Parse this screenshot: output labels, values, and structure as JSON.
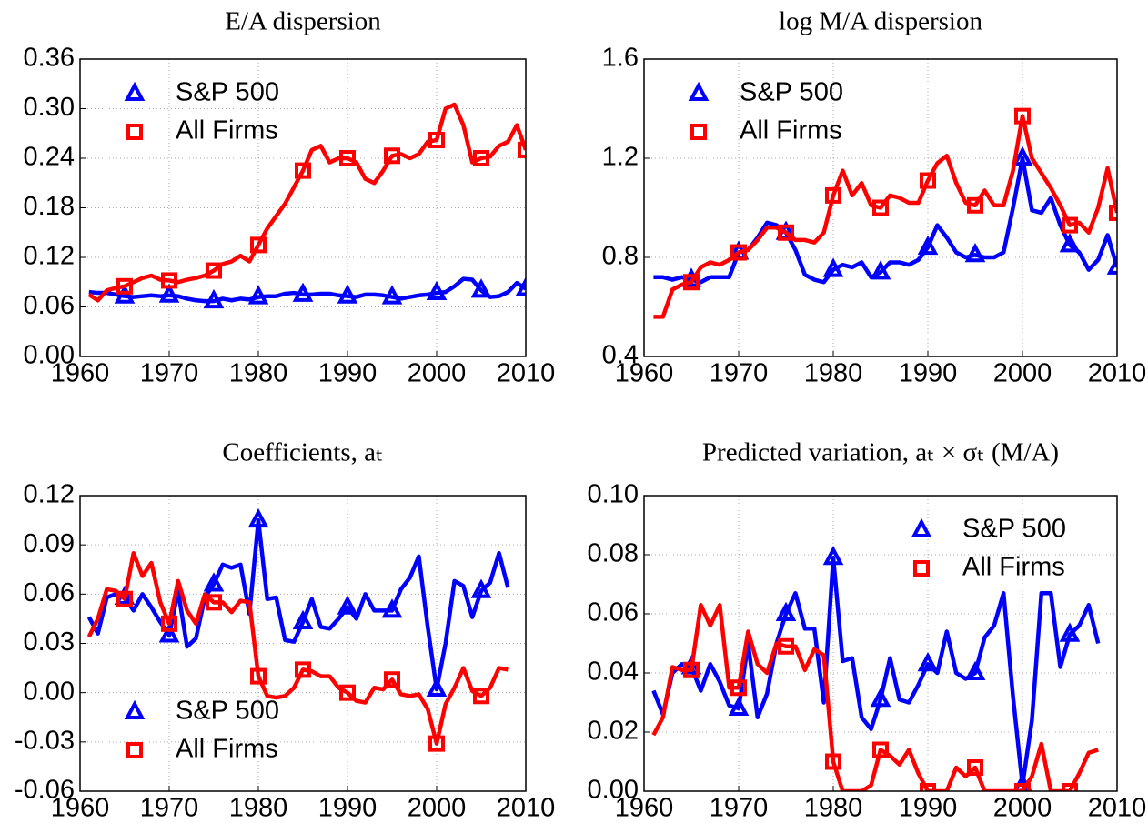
{
  "chart_data": [
    {
      "type": "line",
      "title": "E/A dispersion",
      "legend": "upper left",
      "x": [
        1961,
        1962,
        1963,
        1964,
        1965,
        1966,
        1967,
        1968,
        1969,
        1970,
        1971,
        1972,
        1973,
        1974,
        1975,
        1976,
        1977,
        1978,
        1979,
        1980,
        1981,
        1982,
        1983,
        1984,
        1985,
        1986,
        1987,
        1988,
        1989,
        1990,
        1991,
        1992,
        1993,
        1994,
        1995,
        1996,
        1997,
        1998,
        1999,
        2000,
        2001,
        2002,
        2003,
        2004,
        2005,
        2006,
        2007,
        2008,
        2009,
        2010
      ],
      "xlim": [
        1960,
        2010
      ],
      "xticks": [
        1960,
        1970,
        1980,
        1990,
        2000,
        2010
      ],
      "ylim": [
        0,
        0.36
      ],
      "yticks": [
        {
          "value": 0,
          "label": "0.00"
        },
        0.06,
        0.12,
        0.18,
        0.24,
        {
          "value": 0.3,
          "label": "0.30"
        },
        0.36
      ],
      "grid": true,
      "series": [
        {
          "name": "S&P 500",
          "color": "#0000ff",
          "marker": "triangle",
          "values": [
            0.078,
            0.077,
            0.077,
            0.075,
            0.073,
            0.072,
            0.073,
            0.074,
            0.073,
            0.074,
            0.073,
            0.07,
            0.068,
            0.067,
            0.067,
            0.07,
            0.068,
            0.07,
            0.069,
            0.072,
            0.073,
            0.073,
            0.076,
            0.077,
            0.075,
            0.075,
            0.076,
            0.076,
            0.074,
            0.073,
            0.072,
            0.075,
            0.075,
            0.074,
            0.072,
            0.07,
            0.072,
            0.074,
            0.075,
            0.077,
            0.078,
            0.085,
            0.094,
            0.093,
            0.08,
            0.072,
            0.073,
            0.078,
            0.089,
            0.082
          ]
        },
        {
          "name": "All Firms",
          "color": "#ff0000",
          "marker": "square",
          "values": [
            0.075,
            0.068,
            0.08,
            0.083,
            0.085,
            0.09,
            0.095,
            0.098,
            0.093,
            0.092,
            0.09,
            0.093,
            0.095,
            0.098,
            0.104,
            0.112,
            0.115,
            0.122,
            0.115,
            0.135,
            0.155,
            0.17,
            0.185,
            0.205,
            0.225,
            0.25,
            0.255,
            0.235,
            0.24,
            0.24,
            0.235,
            0.215,
            0.21,
            0.225,
            0.243,
            0.245,
            0.24,
            0.245,
            0.26,
            0.262,
            0.3,
            0.305,
            0.28,
            0.235,
            0.24,
            0.242,
            0.255,
            0.26,
            0.28,
            0.25
          ]
        }
      ]
    },
    {
      "type": "line",
      "title": "log M/A dispersion",
      "legend": "upper left",
      "x": [
        1961,
        1962,
        1963,
        1964,
        1965,
        1966,
        1967,
        1968,
        1969,
        1970,
        1971,
        1972,
        1973,
        1974,
        1975,
        1976,
        1977,
        1978,
        1979,
        1980,
        1981,
        1982,
        1983,
        1984,
        1985,
        1986,
        1987,
        1988,
        1989,
        1990,
        1991,
        1992,
        1993,
        1994,
        1995,
        1996,
        1997,
        1998,
        1999,
        2000,
        2001,
        2002,
        2003,
        2004,
        2005,
        2006,
        2007,
        2008,
        2009,
        2010
      ],
      "xlim": [
        1960,
        2010
      ],
      "xticks": [
        1960,
        1970,
        1980,
        1990,
        2000,
        2010
      ],
      "ylim": [
        0.4,
        1.6
      ],
      "yticks": [
        0.4,
        0.8,
        1.2,
        1.6
      ],
      "grid": true,
      "series": [
        {
          "name": "S&P 500",
          "color": "#0000ff",
          "marker": "triangle",
          "values": [
            0.72,
            0.72,
            0.71,
            0.72,
            0.71,
            0.7,
            0.72,
            0.72,
            0.72,
            0.82,
            0.83,
            0.88,
            0.94,
            0.93,
            0.9,
            0.83,
            0.73,
            0.71,
            0.7,
            0.75,
            0.77,
            0.76,
            0.78,
            0.72,
            0.74,
            0.78,
            0.78,
            0.77,
            0.79,
            0.84,
            0.93,
            0.88,
            0.82,
            0.8,
            0.81,
            0.8,
            0.8,
            0.82,
            1.0,
            1.2,
            0.99,
            0.98,
            1.04,
            0.93,
            0.85,
            0.82,
            0.75,
            0.79,
            0.89,
            0.76
          ]
        },
        {
          "name": "All Firms",
          "color": "#ff0000",
          "marker": "square",
          "values": [
            0.56,
            0.56,
            0.67,
            0.69,
            0.7,
            0.76,
            0.78,
            0.77,
            0.79,
            0.82,
            0.83,
            0.87,
            0.92,
            0.92,
            0.9,
            0.87,
            0.87,
            0.86,
            0.9,
            1.05,
            1.15,
            1.05,
            1.1,
            1.01,
            1.0,
            1.05,
            1.04,
            1.02,
            1.02,
            1.11,
            1.18,
            1.21,
            1.1,
            1.02,
            1.01,
            1.07,
            1.01,
            1.01,
            1.15,
            1.37,
            1.2,
            1.14,
            1.08,
            1.01,
            0.93,
            0.94,
            0.9,
            1.0,
            1.16,
            0.98
          ]
        }
      ]
    },
    {
      "type": "line",
      "title": "Coefficients, aₜ",
      "legend": "lower left",
      "x": [
        1961,
        1962,
        1963,
        1964,
        1965,
        1966,
        1967,
        1968,
        1969,
        1970,
        1971,
        1972,
        1973,
        1974,
        1975,
        1976,
        1977,
        1978,
        1979,
        1980,
        1981,
        1982,
        1983,
        1984,
        1985,
        1986,
        1987,
        1988,
        1989,
        1990,
        1991,
        1992,
        1993,
        1994,
        1995,
        1996,
        1997,
        1998,
        1999,
        2000,
        2001,
        2002,
        2003,
        2004,
        2005,
        2006,
        2007,
        2008
      ],
      "xlim": [
        1960,
        2010
      ],
      "xticks": [
        1960,
        1970,
        1980,
        1990,
        2000,
        2010
      ],
      "ylim": [
        -0.06,
        0.12
      ],
      "yticks": [
        -0.06,
        -0.03,
        {
          "value": 0,
          "label": "0.00"
        },
        0.03,
        0.06,
        0.09,
        0.12
      ],
      "grid": true,
      "series": [
        {
          "name": "S&P 500",
          "color": "#0000ff",
          "marker": "triangle",
          "values": [
            0.046,
            0.036,
            0.058,
            0.06,
            0.058,
            0.05,
            0.06,
            0.052,
            0.043,
            0.035,
            0.062,
            0.028,
            0.033,
            0.058,
            0.066,
            0.078,
            0.076,
            0.078,
            0.048,
            0.105,
            0.057,
            0.058,
            0.032,
            0.031,
            0.043,
            0.057,
            0.04,
            0.039,
            0.045,
            0.052,
            0.045,
            0.06,
            0.05,
            0.05,
            0.05,
            0.063,
            0.07,
            0.083,
            0.04,
            0.002,
            0.03,
            0.068,
            0.065,
            0.046,
            0.062,
            0.067,
            0.085,
            0.064
          ]
        },
        {
          "name": "All Firms",
          "color": "#ff0000",
          "marker": "square",
          "values": [
            0.034,
            0.045,
            0.063,
            0.062,
            0.057,
            0.085,
            0.071,
            0.079,
            0.055,
            0.042,
            0.068,
            0.05,
            0.042,
            0.06,
            0.055,
            0.055,
            0.049,
            0.056,
            0.055,
            0.01,
            -0.002,
            -0.003,
            -0.002,
            0.003,
            0.014,
            0.013,
            0.01,
            0.01,
            0.003,
            0.0,
            -0.005,
            -0.006,
            0.003,
            0.002,
            0.008,
            -0.001,
            -0.002,
            -0.001,
            -0.01,
            -0.031,
            -0.007,
            0.003,
            0.015,
            0.001,
            -0.002,
            0.003,
            0.015,
            0.014
          ]
        }
      ]
    },
    {
      "type": "line",
      "title": "Predicted variation, aₜ × σₜ (M/A)",
      "legend": "upper right",
      "x": [
        1961,
        1962,
        1963,
        1964,
        1965,
        1966,
        1967,
        1968,
        1969,
        1970,
        1971,
        1972,
        1973,
        1974,
        1975,
        1976,
        1977,
        1978,
        1979,
        1980,
        1981,
        1982,
        1983,
        1984,
        1985,
        1986,
        1987,
        1988,
        1989,
        1990,
        1991,
        1992,
        1993,
        1994,
        1995,
        1996,
        1997,
        1998,
        1999,
        2000,
        2001,
        2002,
        2003,
        2004,
        2005,
        2006,
        2007,
        2008
      ],
      "xlim": [
        1960,
        2010
      ],
      "xticks": [
        1960,
        1970,
        1980,
        1990,
        2000,
        2010
      ],
      "ylim": [
        0,
        0.1
      ],
      "yticks": [
        {
          "value": 0,
          "label": "0.00"
        },
        0.02,
        0.04,
        0.06,
        0.08,
        {
          "value": 0.1,
          "label": "0.10"
        }
      ],
      "grid": true,
      "series": [
        {
          "name": "S&P 500",
          "color": "#0000ff",
          "marker": "triangle",
          "values": [
            0.034,
            0.026,
            0.04,
            0.043,
            0.042,
            0.034,
            0.043,
            0.037,
            0.029,
            0.028,
            0.05,
            0.025,
            0.033,
            0.05,
            0.06,
            0.067,
            0.055,
            0.055,
            0.03,
            0.079,
            0.044,
            0.045,
            0.025,
            0.021,
            0.031,
            0.045,
            0.031,
            0.03,
            0.036,
            0.043,
            0.04,
            0.054,
            0.04,
            0.038,
            0.04,
            0.052,
            0.056,
            0.067,
            0.032,
            0.002,
            0.024,
            0.067,
            0.067,
            0.042,
            0.053,
            0.056,
            0.063,
            0.05
          ]
        },
        {
          "name": "All Firms",
          "color": "#ff0000",
          "marker": "square",
          "values": [
            0.019,
            0.025,
            0.042,
            0.041,
            0.041,
            0.063,
            0.056,
            0.063,
            0.035,
            0.035,
            0.054,
            0.043,
            0.04,
            0.05,
            0.049,
            0.049,
            0.041,
            0.048,
            0.046,
            0.01,
            0,
            0,
            0,
            0.002,
            0.014,
            0.012,
            0.009,
            0.014,
            0.006,
            0,
            0,
            0,
            0.008,
            0.005,
            0.008,
            0,
            0,
            0,
            0,
            0,
            0.005,
            0.016,
            0,
            0,
            0,
            0.006,
            0.013,
            0.014
          ]
        }
      ]
    }
  ]
}
